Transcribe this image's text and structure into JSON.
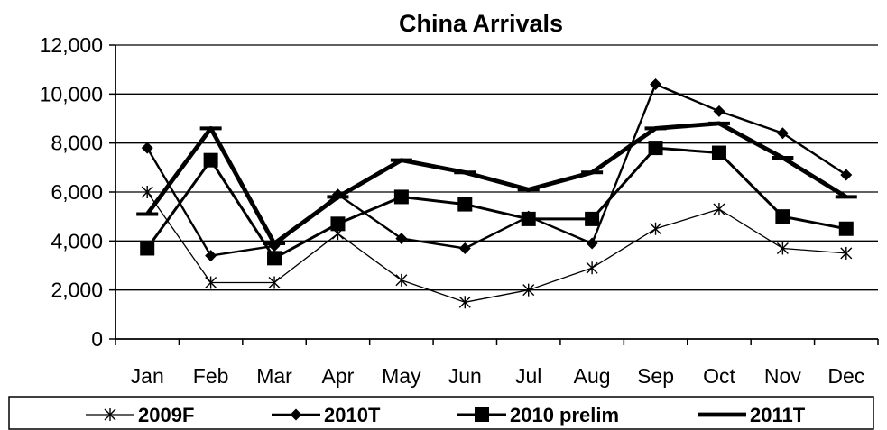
{
  "chart_data": {
    "type": "line",
    "title": "China Arrivals",
    "xlabel": "",
    "ylabel": "",
    "categories": [
      "Jan",
      "Feb",
      "Mar",
      "Apr",
      "May",
      "Jun",
      "Jul",
      "Aug",
      "Sep",
      "Oct",
      "Nov",
      "Dec"
    ],
    "ylim": [
      0,
      12000
    ],
    "yticks": [
      0,
      2000,
      4000,
      6000,
      8000,
      10000,
      12000
    ],
    "ytick_labels": [
      "0",
      "2,000",
      "4,000",
      "6,000",
      "8,000",
      "10,000",
      "12,000"
    ],
    "grid": true,
    "legend_position": "bottom",
    "series": [
      {
        "name": "2009F",
        "marker": "asterisk",
        "color": "#000000",
        "values": [
          6000,
          2300,
          2300,
          4300,
          2400,
          1500,
          2000,
          2900,
          4500,
          5300,
          3700,
          3500
        ]
      },
      {
        "name": "2010T",
        "marker": "diamond",
        "color": "#000000",
        "values": [
          7800,
          3400,
          3800,
          5900,
          4100,
          3700,
          5000,
          3900,
          10400,
          9300,
          8400,
          6700
        ]
      },
      {
        "name": "2010 prelim",
        "marker": "square",
        "color": "#000000",
        "values": [
          3700,
          7300,
          3300,
          4700,
          5800,
          5500,
          4900,
          4900,
          7800,
          7600,
          5000,
          4500
        ]
      },
      {
        "name": "2011T",
        "marker": "dash",
        "color": "#000000",
        "values": [
          5100,
          8600,
          3900,
          5800,
          7300,
          6800,
          6100,
          6800,
          8600,
          8800,
          7400,
          5800
        ]
      }
    ]
  }
}
